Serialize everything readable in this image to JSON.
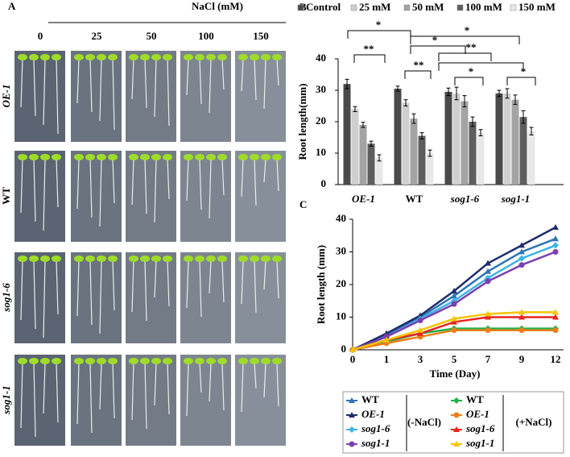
{
  "panel_a": {
    "label": "A",
    "header": "NaCl (mM)",
    "columns": [
      "0",
      "25",
      "50",
      "100",
      "150"
    ],
    "rows": [
      "OE-1",
      "WT",
      "sog1-6",
      "sog1-1"
    ]
  },
  "chart_data": [
    {
      "type": "bar",
      "panel": "B",
      "ylabel": "Root length(mm)",
      "categories": [
        "OE-1",
        "WT",
        "sog1-6",
        "sog1-1"
      ],
      "series": [
        {
          "name": "Control",
          "color": "#4a4a4a",
          "values": [
            32,
            30.5,
            29.5,
            29
          ],
          "errors": [
            1.5,
            0.8,
            1.2,
            1
          ]
        },
        {
          "name": "25 mM",
          "color": "#cfcfcf",
          "values": [
            24,
            26,
            29,
            29
          ],
          "errors": [
            0.8,
            1,
            2,
            1.5
          ]
        },
        {
          "name": "50 mM",
          "color": "#a3a3a3",
          "values": [
            19,
            21,
            26.5,
            27
          ],
          "errors": [
            0.8,
            1.5,
            1.8,
            1.5
          ]
        },
        {
          "name": "100 mM",
          "color": "#5e5e5e",
          "values": [
            13,
            15.5,
            20,
            21.5
          ],
          "errors": [
            0.8,
            1,
            1.5,
            2
          ]
        },
        {
          "name": "150 mM",
          "color": "#e8e8e8",
          "values": [
            8.5,
            10,
            16.5,
            17
          ],
          "errors": [
            1,
            1,
            1,
            1.2
          ]
        }
      ],
      "ylim": [
        0,
        40
      ],
      "yticks": [
        0,
        10,
        20,
        30,
        40
      ],
      "annotations": [
        "*",
        "**",
        "*",
        "*",
        "**",
        "**",
        "*",
        "*"
      ]
    },
    {
      "type": "line",
      "panel": "C",
      "xlabel": "Time (Day)",
      "ylabel": "Root length (mm)",
      "categories": [
        "0",
        "1",
        "3",
        "5",
        "7",
        "9",
        "12"
      ],
      "series": [
        {
          "name": "WT",
          "color": "#2e75b6",
          "marker": "triangle",
          "values": [
            0,
            4.5,
            10,
            16.5,
            24,
            30,
            34
          ]
        },
        {
          "name": "OE-1",
          "color": "#1f2d6b",
          "marker": "triangle",
          "values": [
            0,
            5,
            10.5,
            18,
            26.5,
            32,
            37.5
          ]
        },
        {
          "name": "sog1-6",
          "color": "#3cb4e6",
          "marker": "diamond",
          "values": [
            0,
            4,
            9.5,
            15,
            22,
            28,
            32
          ]
        },
        {
          "name": "sog1-1",
          "color": "#7b3fb0",
          "marker": "circle",
          "values": [
            0,
            4,
            9,
            14,
            21,
            26,
            30
          ]
        },
        {
          "name": "WT",
          "color": "#22b14c",
          "marker": "diamond",
          "values": [
            0,
            2.5,
            5,
            6.5,
            6.5,
            6.5,
            6.5
          ]
        },
        {
          "name": "OE-1",
          "color": "#f07d1a",
          "marker": "circle",
          "values": [
            0,
            2,
            4,
            6,
            6,
            6,
            6
          ]
        },
        {
          "name": "sog1-6",
          "color": "#e8251e",
          "marker": "triangle",
          "values": [
            0,
            3,
            5,
            8.5,
            10,
            10,
            10
          ]
        },
        {
          "name": "sog1-1",
          "color": "#f5c400",
          "marker": "triangle",
          "values": [
            0,
            3,
            6,
            9.5,
            11,
            11.5,
            11.5
          ]
        }
      ],
      "ylim": [
        0,
        40
      ],
      "yticks": [
        0,
        10,
        20,
        30,
        40
      ],
      "groups": [
        "(-NaCl)",
        "(+NaCl)"
      ]
    }
  ]
}
